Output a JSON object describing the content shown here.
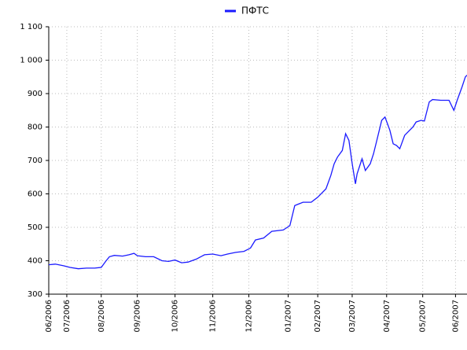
{
  "chart_data": {
    "type": "line",
    "series": [
      {
        "name": "ПФТС",
        "color": "#1a1aff",
        "x": [
          0,
          4,
          9,
          13,
          18,
          23,
          28,
          32,
          35,
          37,
          40,
          45,
          49,
          52,
          54,
          59,
          64,
          69,
          73,
          77,
          81,
          85,
          90,
          95,
          100,
          105,
          109,
          114,
          119,
          123,
          126,
          131,
          136,
          143,
          147,
          150,
          155,
          160,
          164,
          169,
          172,
          174,
          176,
          179,
          181,
          183,
          185,
          187,
          188,
          191,
          193,
          196,
          198,
          200,
          203,
          205,
          208,
          210,
          212,
          214,
          217,
          220,
          222,
          224,
          227,
          229,
          232,
          234,
          239,
          244,
          246,
          247,
          249,
          252,
          254,
          255
        ],
        "values": [
          388,
          390,
          385,
          380,
          376,
          378,
          378,
          380,
          400,
          412,
          416,
          414,
          418,
          422,
          415,
          412,
          412,
          400,
          398,
          402,
          394,
          396,
          405,
          418,
          420,
          415,
          420,
          425,
          428,
          438,
          462,
          468,
          488,
          492,
          505,
          565,
          575,
          575,
          590,
          615,
          655,
          690,
          710,
          730,
          780,
          760,
          690,
          630,
          660,
          705,
          670,
          690,
          720,
          760,
          820,
          830,
          790,
          750,
          745,
          735,
          775,
          790,
          800,
          815,
          820,
          818,
          875,
          882,
          880,
          880,
          860,
          850,
          880,
          920,
          950,
          955
        ]
      }
    ],
    "xlim": [
      0,
      255
    ],
    "xticks": [
      {
        "value": 0,
        "label": "06/2006"
      },
      {
        "value": 11,
        "label": "07/2006"
      },
      {
        "value": 32,
        "label": "08/2006"
      },
      {
        "value": 54,
        "label": "09/2006"
      },
      {
        "value": 77,
        "label": "10/2006"
      },
      {
        "value": 100,
        "label": "11/2006"
      },
      {
        "value": 122,
        "label": "12/2006"
      },
      {
        "value": 146,
        "label": "01/2007"
      },
      {
        "value": 164,
        "label": "02/2007"
      },
      {
        "value": 185,
        "label": "03/2007"
      },
      {
        "value": 206,
        "label": "04/2007"
      },
      {
        "value": 228,
        "label": "05/2007"
      },
      {
        "value": 248,
        "label": "06/2007"
      }
    ],
    "ylim": [
      300,
      1100
    ],
    "yticks": [
      300,
      400,
      500,
      600,
      700,
      800,
      900,
      {
        "value": 1000,
        "label": "1 000"
      },
      {
        "value": 1100,
        "label": "1 100"
      }
    ],
    "grid": true,
    "legend": "top"
  }
}
